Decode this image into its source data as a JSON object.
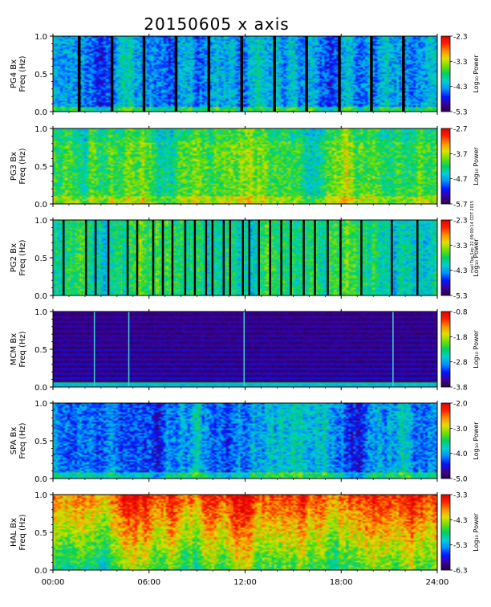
{
  "title": "20150605 x axis",
  "stamp": "mail Tue Sep 22 09:00:14 CDT 2015",
  "colorbar_colors": [
    "#2a0040",
    "#3a00a0",
    "#0018ff",
    "#0090ff",
    "#00d0d0",
    "#00d060",
    "#70e000",
    "#e0e000",
    "#ff9000",
    "#ff2000",
    "#e00000"
  ],
  "chart_data": [
    {
      "type": "heatmap",
      "station": "PG4",
      "ylabel_line1": "PG4 Bx",
      "ylabel_line2": "Freq (Hz)",
      "y_ticks": [
        "0.0",
        "0.5",
        "1.0"
      ],
      "ylim": [
        0,
        1.0
      ],
      "colorbar_ticks": [
        "-2.3",
        "-3.3",
        "-4.3",
        "-5.3"
      ],
      "colorbar_range": [
        -5.3,
        -2.3
      ],
      "colorbar_label": "Log₁₀ Power",
      "base_level": 0.3,
      "gaps_hours": [
        1.55,
        3.6,
        5.6,
        7.6,
        9.65,
        11.7,
        13.75,
        15.75,
        17.8,
        19.8,
        21.8
      ]
    },
    {
      "type": "heatmap",
      "station": "PG3",
      "ylabel_line1": "PG3 Bx",
      "ylabel_line2": "Freq (Hz)",
      "y_ticks": [
        "0.0",
        "0.5",
        "1.0"
      ],
      "ylim": [
        0,
        1.0
      ],
      "colorbar_ticks": [
        "-2.7",
        "-3.7",
        "-4.7",
        "-5.7"
      ],
      "colorbar_range": [
        -5.7,
        -2.7
      ],
      "colorbar_label": "Log₁₀ Power",
      "base_level": 0.55,
      "gaps_hours": []
    },
    {
      "type": "heatmap",
      "station": "PG2",
      "ylabel_line1": "PG2 Bx",
      "ylabel_line2": "Freq (Hz)",
      "y_ticks": [
        "0.0",
        "0.5",
        "1.0"
      ],
      "ylim": [
        0,
        1.0
      ],
      "colorbar_ticks": [
        "-2.3",
        "-3.3",
        "-4.3",
        "-5.3"
      ],
      "colorbar_range": [
        -5.3,
        -2.3
      ],
      "colorbar_label": "Log₁₀ Power",
      "base_level": 0.48,
      "gaps_hours": [
        0.6,
        2.0,
        2.6,
        3.4,
        4.6,
        5.2,
        6.2,
        6.8,
        7.4,
        8.2,
        8.8,
        9.5,
        9.9,
        10.6,
        11.0,
        11.8,
        12.2,
        12.8,
        13.5,
        14.2,
        14.8,
        15.6,
        16.3,
        17.1,
        17.9,
        19.2,
        21.1,
        22.7
      ]
    },
    {
      "type": "heatmap",
      "station": "MCM",
      "ylabel_line1": "MCM Bx",
      "ylabel_line2": "Freq (Hz)",
      "y_ticks": [
        "0.0",
        "0.5",
        "1.0"
      ],
      "ylim": [
        0,
        1.0
      ],
      "colorbar_ticks": [
        "-0.8",
        "-1.8",
        "-2.8",
        "-3.8"
      ],
      "colorbar_range": [
        -3.8,
        -0.8
      ],
      "colorbar_label": "Log₁₀ Power",
      "base_level": 0.08,
      "gaps_hours": []
    },
    {
      "type": "heatmap",
      "station": "SPA",
      "ylabel_line1": "SPA Bx",
      "ylabel_line2": "Freq (Hz)",
      "y_ticks": [
        "0.0",
        "0.5",
        "1.0"
      ],
      "ylim": [
        0,
        1.0
      ],
      "colorbar_ticks": [
        "-2.0",
        "-3.0",
        "-4.0",
        "-5.0"
      ],
      "colorbar_range": [
        -5.0,
        -2.0
      ],
      "colorbar_label": "Log₁₀ Power",
      "base_level": 0.32,
      "gaps_hours": []
    },
    {
      "type": "heatmap",
      "station": "HAL",
      "ylabel_line1": "HAL Bx",
      "ylabel_line2": "Freq (Hz)",
      "y_ticks": [
        "0.0",
        "0.5",
        "1.0"
      ],
      "ylim": [
        0,
        1.0
      ],
      "colorbar_ticks": [
        "-3.3",
        "-4.3",
        "-5.3",
        "-6.3"
      ],
      "colorbar_range": [
        -6.3,
        -3.3
      ],
      "colorbar_label": "Log₁₀ Power",
      "base_level": 0.72,
      "gaps_hours": []
    }
  ],
  "x_axis": {
    "ticks": [
      "00:00",
      "06:00",
      "12:00",
      "18:00",
      "24:00"
    ],
    "tick_hours": [
      0,
      6,
      12,
      18,
      24
    ],
    "xlim_hours": [
      0,
      24
    ]
  }
}
